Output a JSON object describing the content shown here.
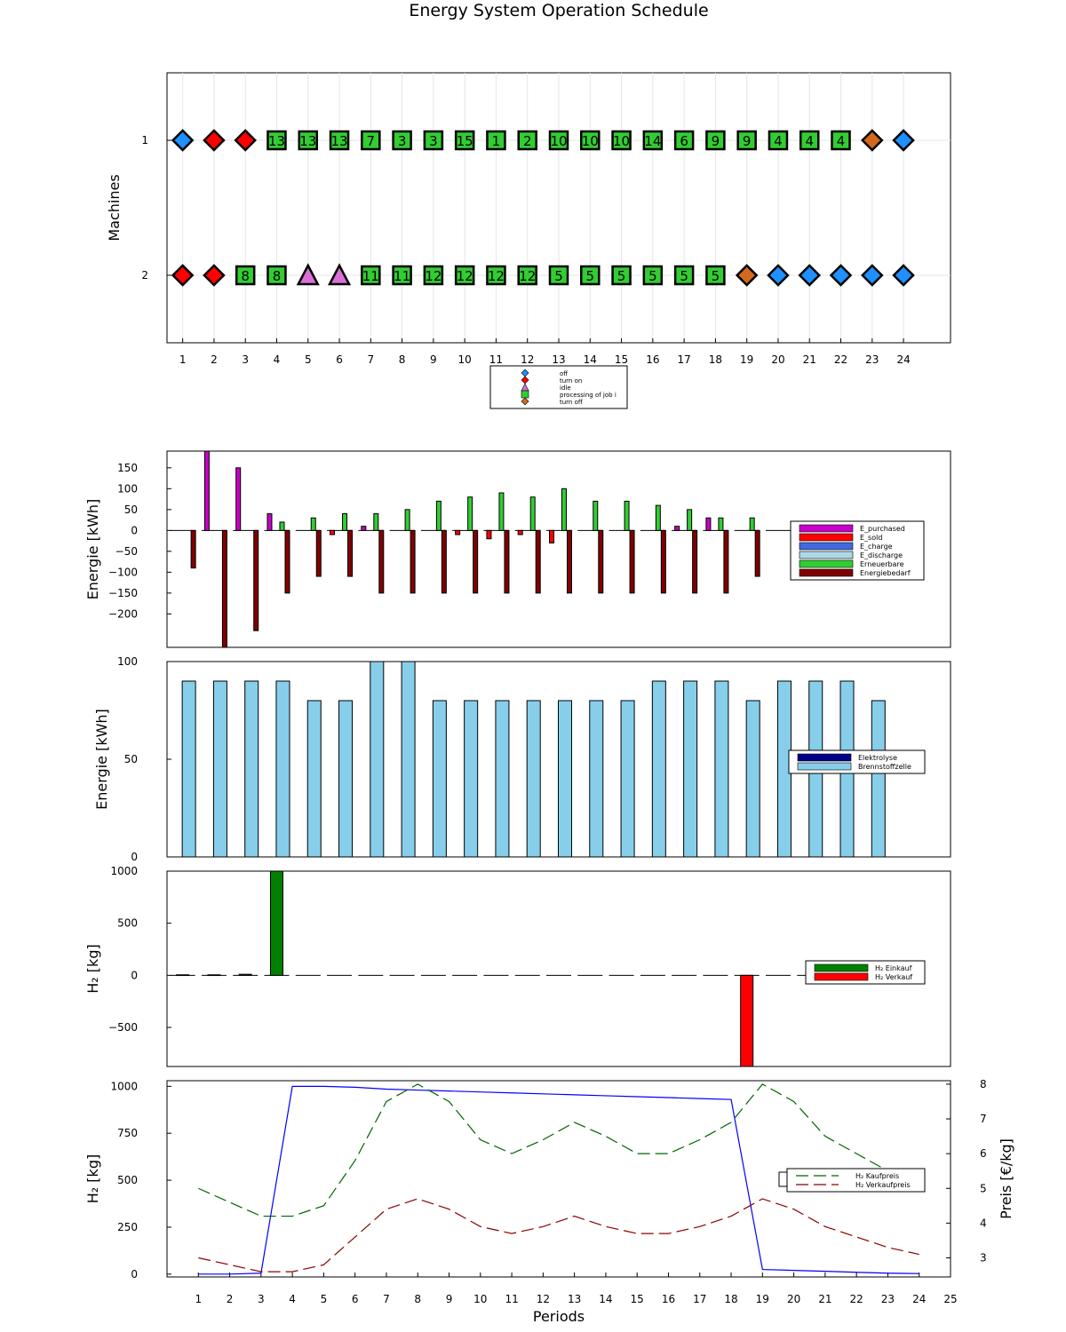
{
  "title": "Energy System Operation Schedule",
  "chart_data": [
    {
      "type": "scatter",
      "subtype": "schedule",
      "ylabel": "Machines",
      "x": [
        1,
        2,
        3,
        4,
        5,
        6,
        7,
        8,
        9,
        10,
        11,
        12,
        13,
        14,
        15,
        16,
        17,
        18,
        19,
        20,
        21,
        22,
        23,
        24
      ],
      "machines": [
        {
          "name": "1",
          "states": [
            "off",
            "turn on",
            "turn on",
            "processing",
            "processing",
            "processing",
            "processing",
            "processing",
            "processing",
            "processing",
            "processing",
            "processing",
            "processing",
            "processing",
            "processing",
            "processing",
            "processing",
            "processing",
            "processing",
            "processing",
            "processing",
            "processing",
            "turn off",
            "off"
          ],
          "jobs": [
            "",
            "",
            "",
            "13",
            "13",
            "13",
            "7",
            "3",
            "3",
            "15",
            "1",
            "2",
            "10",
            "10",
            "10",
            "14",
            "6",
            "9",
            "9",
            "4",
            "4",
            "4",
            "",
            ""
          ]
        },
        {
          "name": "2",
          "states": [
            "turn on",
            "turn on",
            "processing",
            "processing",
            "idle",
            "idle",
            "processing",
            "processing",
            "processing",
            "processing",
            "processing",
            "processing",
            "processing",
            "processing",
            "processing",
            "processing",
            "processing",
            "processing",
            "turn off",
            "off",
            "off",
            "off",
            "off",
            "off"
          ],
          "jobs": [
            "",
            "",
            "8",
            "8",
            "",
            "",
            "11",
            "11",
            "12",
            "12",
            "12",
            "12",
            "5",
            "5",
            "5",
            "5",
            "5",
            "5",
            "",
            "",
            "",
            "",
            "",
            ""
          ]
        }
      ],
      "legend": [
        {
          "label": "off",
          "state": "off",
          "color": "#1E90FF",
          "marker": "diamond"
        },
        {
          "label": "turn on",
          "state": "turn on",
          "color": "#FF0000",
          "marker": "diamond"
        },
        {
          "label": "idle",
          "state": "idle",
          "color": "#DA70D6",
          "marker": "triangle"
        },
        {
          "label": "processing of job i",
          "state": "processing",
          "color": "#32CD32",
          "marker": "square"
        },
        {
          "label": "turn off",
          "state": "turn off",
          "color": "#D2691E",
          "marker": "diamond"
        }
      ],
      "legend_position": "bottom-center"
    },
    {
      "type": "bar",
      "ylabel": "Energie [kWh]",
      "x": [
        1,
        2,
        3,
        4,
        5,
        6,
        7,
        8,
        9,
        10,
        11,
        12,
        13,
        14,
        15,
        16,
        17,
        18,
        19,
        20,
        21,
        22,
        23,
        24
      ],
      "ylim": [
        -280,
        190
      ],
      "yticks": [
        -200,
        -150,
        -100,
        -50,
        0,
        50,
        100,
        150
      ],
      "series": [
        {
          "name": "E_purchased",
          "color": "#C800C8",
          "values": [
            0,
            200,
            150,
            40,
            0,
            0,
            10,
            0,
            0,
            0,
            0,
            0,
            0,
            0,
            0,
            0,
            10,
            30,
            0,
            0,
            0,
            0,
            0,
            0
          ]
        },
        {
          "name": "E_sold",
          "color": "#FF0000",
          "values": [
            0,
            0,
            0,
            0,
            0,
            -10,
            0,
            0,
            0,
            -10,
            -20,
            -10,
            -30,
            0,
            0,
            0,
            0,
            0,
            0,
            0,
            0,
            0,
            0,
            0
          ]
        },
        {
          "name": "E_charge",
          "color": "#4169E1",
          "values": [
            0,
            0,
            0,
            0,
            0,
            0,
            0,
            0,
            0,
            0,
            0,
            0,
            0,
            0,
            0,
            0,
            0,
            0,
            0,
            0,
            0,
            0,
            0,
            0
          ]
        },
        {
          "name": "E_discharge",
          "color": "#ADD8E6",
          "values": [
            0,
            0,
            0,
            0,
            0,
            0,
            0,
            0,
            0,
            0,
            0,
            0,
            0,
            0,
            0,
            0,
            0,
            0,
            0,
            0,
            0,
            0,
            0,
            0
          ]
        },
        {
          "name": "Erneuerbare",
          "color": "#32CD32",
          "values": [
            0,
            0,
            0,
            20,
            30,
            40,
            40,
            50,
            70,
            80,
            90,
            80,
            100,
            70,
            70,
            60,
            50,
            30,
            30,
            0,
            0,
            0,
            0,
            0
          ]
        },
        {
          "name": "Energiebedarf",
          "color": "#800000",
          "values": [
            -90,
            -280,
            -240,
            -150,
            -110,
            -110,
            -150,
            -150,
            -150,
            -150,
            -150,
            -150,
            -150,
            -150,
            -150,
            -150,
            -150,
            -150,
            -110,
            0,
            0,
            0,
            0,
            0
          ]
        }
      ],
      "legend_position": "right"
    },
    {
      "type": "bar",
      "ylabel": "Energie [kWh]",
      "x": [
        1,
        2,
        3,
        4,
        5,
        6,
        7,
        8,
        9,
        10,
        11,
        12,
        13,
        14,
        15,
        16,
        17,
        18,
        19,
        20,
        21,
        22,
        23,
        24
      ],
      "ylim": [
        0,
        100
      ],
      "yticks": [
        0,
        50,
        100
      ],
      "series": [
        {
          "name": "Elektrolyse",
          "color": "#00008B",
          "values": [
            0,
            0,
            0,
            0,
            0,
            0,
            0,
            0,
            0,
            0,
            0,
            0,
            0,
            0,
            0,
            0,
            0,
            0,
            0,
            0,
            0,
            0,
            0,
            0
          ]
        },
        {
          "name": "Brennstoffzelle",
          "color": "#87CEEB",
          "values": [
            90,
            90,
            90,
            90,
            80,
            80,
            100,
            100,
            80,
            80,
            80,
            80,
            80,
            80,
            80,
            90,
            90,
            90,
            80,
            90,
            90,
            90,
            80,
            0
          ]
        }
      ],
      "legend_position": "right"
    },
    {
      "type": "bar",
      "ylabel": "H₂ [kg]",
      "x": [
        1,
        2,
        3,
        4,
        5,
        6,
        7,
        8,
        9,
        10,
        11,
        12,
        13,
        14,
        15,
        16,
        17,
        18,
        19,
        20,
        21,
        22,
        23,
        24
      ],
      "ylim": [
        -875,
        1000
      ],
      "yticks": [
        -500,
        0,
        500,
        1000
      ],
      "series": [
        {
          "name": "H₂ Einkauf",
          "color": "#008000",
          "values": [
            5,
            5,
            10,
            1000,
            0,
            0,
            0,
            0,
            0,
            0,
            0,
            0,
            0,
            0,
            0,
            0,
            0,
            0,
            0,
            0,
            0,
            0,
            0,
            0
          ]
        },
        {
          "name": "H₂ Verkauf",
          "color": "#FF0000",
          "values": [
            0,
            0,
            0,
            0,
            0,
            0,
            0,
            0,
            0,
            0,
            0,
            0,
            0,
            0,
            0,
            0,
            0,
            0,
            -875,
            0,
            0,
            0,
            0,
            0
          ]
        }
      ],
      "legend_position": "right"
    },
    {
      "type": "line",
      "xlabel": "Periods",
      "ylabel": "H₂ [kg]",
      "ylabel_right": "Preis [€/kg]",
      "xlim": [
        0,
        25
      ],
      "x": [
        1,
        2,
        3,
        4,
        5,
        6,
        7,
        8,
        9,
        10,
        11,
        12,
        13,
        14,
        15,
        16,
        17,
        18,
        19,
        20,
        21,
        22,
        23,
        24
      ],
      "ylim": [
        -15,
        1030
      ],
      "yticks": [
        0,
        250,
        500,
        750,
        1000
      ],
      "y2lim": [
        2.45,
        8.1
      ],
      "y2ticks": [
        3,
        4,
        5,
        6,
        7,
        8
      ],
      "series": [
        {
          "name": "",
          "axis": "left",
          "color": "#0000FF",
          "dash": "solid",
          "values": [
            0,
            0,
            5,
            1000,
            1000,
            995,
            985,
            980,
            975,
            970,
            965,
            960,
            955,
            950,
            945,
            940,
            935,
            930,
            25,
            20,
            15,
            10,
            5,
            3
          ]
        },
        {
          "name": "H₂ Kaufpreis",
          "axis": "right",
          "color": "#006400",
          "dash": "dashed",
          "values": [
            5.0,
            4.6,
            4.2,
            4.2,
            4.5,
            5.8,
            7.5,
            8.0,
            7.5,
            6.4,
            6.0,
            6.4,
            6.9,
            6.5,
            6.0,
            6.0,
            6.4,
            6.9,
            8.0,
            7.5,
            6.5,
            6.0,
            5.5,
            5.0
          ]
        },
        {
          "name": "H₂ Verkaufpreis",
          "axis": "right",
          "color": "#8B0000",
          "dash": "dashed",
          "values": [
            3.0,
            2.8,
            2.6,
            2.6,
            2.8,
            3.6,
            4.4,
            4.7,
            4.4,
            3.9,
            3.7,
            3.9,
            4.2,
            3.9,
            3.7,
            3.7,
            3.9,
            4.2,
            4.7,
            4.4,
            3.9,
            3.6,
            3.3,
            3.1
          ]
        }
      ],
      "legend_position": "right"
    }
  ]
}
